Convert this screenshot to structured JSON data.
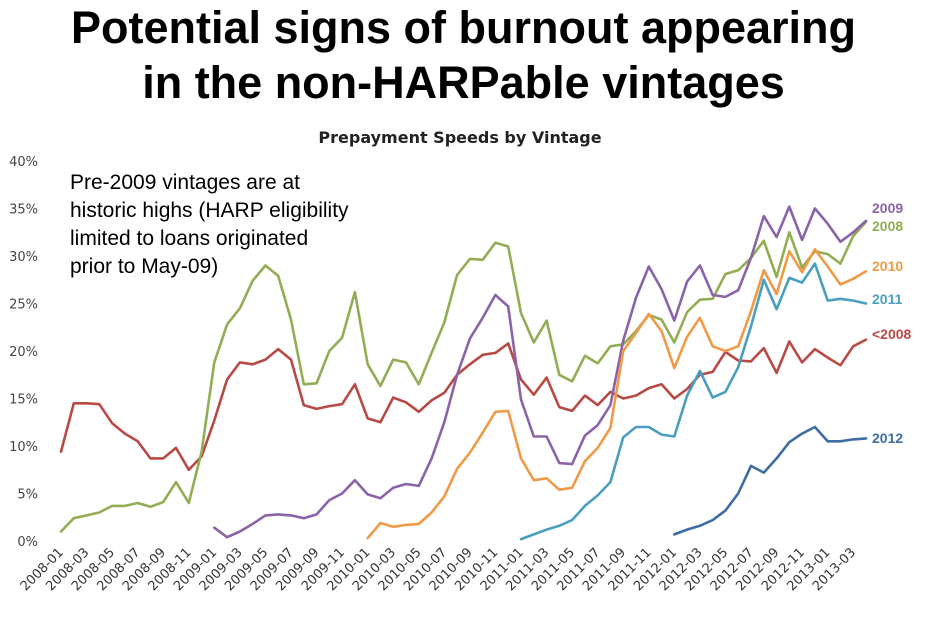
{
  "headline": {
    "line1": "Potential signs of burnout appearing",
    "line2": "in the non-HARPable vintages"
  },
  "chart_data": {
    "type": "line",
    "title": "Prepayment Speeds by Vintage",
    "xlabel": "",
    "ylabel": "",
    "ylim": [
      0,
      0.4
    ],
    "y_ticks": [
      "0%",
      "5%",
      "10%",
      "15%",
      "20%",
      "25%",
      "30%",
      "35%",
      "40%"
    ],
    "x_tick_labels": [
      "2008-01",
      "2008-03",
      "2008-05",
      "2008-07",
      "2008-09",
      "2008-11",
      "2009-01",
      "2009-03",
      "2009-05",
      "2009-07",
      "2009-09",
      "2009-11",
      "2010-01",
      "2010-03",
      "2010-05",
      "2010-07",
      "2010-09",
      "2010-11",
      "2011-01",
      "2011-03",
      "2011-05",
      "2011-07",
      "2011-09",
      "2011-11",
      "2012-01",
      "2012-03",
      "2012-05",
      "2012-07",
      "2012-09",
      "2012-11",
      "2013-01",
      "2013-03"
    ],
    "x": [
      "2008-01",
      "2008-02",
      "2008-03",
      "2008-04",
      "2008-05",
      "2008-06",
      "2008-07",
      "2008-08",
      "2008-09",
      "2008-10",
      "2008-11",
      "2008-12",
      "2009-01",
      "2009-02",
      "2009-03",
      "2009-04",
      "2009-05",
      "2009-06",
      "2009-07",
      "2009-08",
      "2009-09",
      "2009-10",
      "2009-11",
      "2009-12",
      "2010-01",
      "2010-02",
      "2010-03",
      "2010-04",
      "2010-05",
      "2010-06",
      "2010-07",
      "2010-08",
      "2010-09",
      "2010-10",
      "2010-11",
      "2010-12",
      "2011-01",
      "2011-02",
      "2011-03",
      "2011-04",
      "2011-05",
      "2011-06",
      "2011-07",
      "2011-08",
      "2011-09",
      "2011-10",
      "2011-11",
      "2011-12",
      "2012-01",
      "2012-02",
      "2012-03",
      "2012-04",
      "2012-05",
      "2012-06",
      "2012-07",
      "2012-08",
      "2012-09",
      "2012-10",
      "2012-11",
      "2012-12",
      "2013-01",
      "2013-02",
      "2013-03",
      "2013-04"
    ],
    "annotation": {
      "lines": [
        "Pre-2009 vintages are at",
        "historic highs (HARP eligibility",
        "limited to loans originated",
        "prior to May-09)"
      ]
    },
    "grid": false,
    "legend": "inline labels at right end of lines",
    "series": [
      {
        "name": "<2008",
        "color": "#b84a45",
        "values": [
          0.094,
          0.145,
          0.145,
          0.144,
          0.124,
          0.113,
          0.105,
          0.087,
          0.087,
          0.098,
          0.075,
          0.089,
          0.127,
          0.17,
          0.188,
          0.186,
          0.191,
          0.202,
          0.191,
          0.143,
          0.139,
          0.142,
          0.144,
          0.165,
          0.129,
          0.125,
          0.151,
          0.146,
          0.136,
          0.148,
          0.156,
          0.175,
          0.186,
          0.196,
          0.198,
          0.208,
          0.17,
          0.154,
          0.172,
          0.141,
          0.137,
          0.153,
          0.143,
          0.157,
          0.15,
          0.153,
          0.161,
          0.165,
          0.15,
          0.16,
          0.175,
          0.178,
          0.199,
          0.19,
          0.189,
          0.203,
          0.177,
          0.21,
          0.188,
          0.202,
          0.193,
          0.185,
          0.205,
          0.212
        ]
      },
      {
        "name": "2008",
        "color": "#92ad54",
        "values": [
          0.01,
          0.024,
          0.027,
          0.03,
          0.037,
          0.037,
          0.04,
          0.036,
          0.041,
          0.062,
          0.04,
          0.094,
          0.188,
          0.228,
          0.245,
          0.274,
          0.29,
          0.279,
          0.233,
          0.165,
          0.166,
          0.2,
          0.214,
          0.262,
          0.186,
          0.163,
          0.191,
          0.188,
          0.165,
          0.198,
          0.23,
          0.28,
          0.297,
          0.296,
          0.314,
          0.31,
          0.24,
          0.209,
          0.232,
          0.175,
          0.168,
          0.195,
          0.187,
          0.205,
          0.207,
          0.221,
          0.238,
          0.233,
          0.209,
          0.241,
          0.254,
          0.255,
          0.281,
          0.285,
          0.298,
          0.316,
          0.278,
          0.325,
          0.288,
          0.305,
          0.302,
          0.292,
          0.321,
          0.336
        ]
      },
      {
        "name": "2009",
        "color": "#8a63a8",
        "values": [
          null,
          null,
          null,
          null,
          null,
          null,
          null,
          null,
          null,
          null,
          null,
          null,
          0.014,
          0.004,
          0.01,
          0.018,
          0.027,
          0.028,
          0.027,
          0.024,
          0.028,
          0.043,
          0.05,
          0.064,
          0.049,
          0.045,
          0.056,
          0.06,
          0.058,
          0.087,
          0.125,
          0.175,
          0.213,
          0.235,
          0.259,
          0.247,
          0.149,
          0.11,
          0.11,
          0.082,
          0.081,
          0.111,
          0.122,
          0.143,
          0.211,
          0.256,
          0.289,
          0.265,
          0.232,
          0.273,
          0.29,
          0.259,
          0.257,
          0.264,
          0.298,
          0.342,
          0.32,
          0.352,
          0.317,
          0.35,
          0.334,
          0.315,
          0.325,
          0.337
        ]
      },
      {
        "name": "2010",
        "color": "#f09a47",
        "values": [
          null,
          null,
          null,
          null,
          null,
          null,
          null,
          null,
          null,
          null,
          null,
          null,
          null,
          null,
          null,
          null,
          null,
          null,
          null,
          null,
          null,
          null,
          null,
          null,
          0.003,
          0.019,
          0.015,
          0.017,
          0.018,
          0.03,
          0.047,
          0.076,
          0.093,
          0.114,
          0.136,
          0.137,
          0.087,
          0.064,
          0.066,
          0.054,
          0.056,
          0.084,
          0.098,
          0.119,
          0.2,
          0.219,
          0.239,
          0.221,
          0.182,
          0.215,
          0.235,
          0.205,
          0.2,
          0.205,
          0.242,
          0.285,
          0.26,
          0.305,
          0.283,
          0.307,
          0.289,
          0.27,
          0.276,
          0.284
        ]
      },
      {
        "name": "2011",
        "color": "#4a9fc0",
        "values": [
          null,
          null,
          null,
          null,
          null,
          null,
          null,
          null,
          null,
          null,
          null,
          null,
          null,
          null,
          null,
          null,
          null,
          null,
          null,
          null,
          null,
          null,
          null,
          null,
          null,
          null,
          null,
          null,
          null,
          null,
          null,
          null,
          null,
          null,
          null,
          null,
          0.002,
          0.007,
          0.012,
          0.016,
          0.022,
          0.037,
          0.048,
          0.062,
          0.109,
          0.12,
          0.12,
          0.112,
          0.11,
          0.153,
          0.179,
          0.151,
          0.157,
          0.183,
          0.226,
          0.275,
          0.244,
          0.277,
          0.272,
          0.292,
          0.253,
          0.255,
          0.253,
          0.25
        ]
      },
      {
        "name": "2012",
        "color": "#3e6ca3",
        "values": [
          null,
          null,
          null,
          null,
          null,
          null,
          null,
          null,
          null,
          null,
          null,
          null,
          null,
          null,
          null,
          null,
          null,
          null,
          null,
          null,
          null,
          null,
          null,
          null,
          null,
          null,
          null,
          null,
          null,
          null,
          null,
          null,
          null,
          null,
          null,
          null,
          null,
          null,
          null,
          null,
          null,
          null,
          null,
          null,
          null,
          null,
          null,
          null,
          0.007,
          0.012,
          0.016,
          0.022,
          0.032,
          0.05,
          0.079,
          0.072,
          0.087,
          0.104,
          0.113,
          0.12,
          0.105,
          0.105,
          0.107,
          0.108
        ]
      }
    ]
  }
}
